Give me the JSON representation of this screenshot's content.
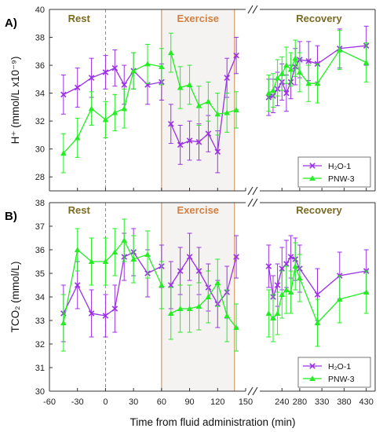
{
  "figure": {
    "xlabel": "Time from fluid administration (min)",
    "x_ticks_left": [
      -60,
      -30,
      0,
      30,
      60,
      90,
      120,
      150
    ],
    "x_ticks_right": [
      240,
      280,
      330,
      380,
      430
    ],
    "x_tick_labels_right": [
      "240",
      "280",
      "330",
      "380",
      "430"
    ],
    "x_tick_label_150": "150",
    "colors": {
      "h2o": "#9b30e6",
      "pnw": "#22ee22",
      "phase_text": "#7a6a20",
      "exercise_text": "#d08040",
      "exercise_fill": "#f5f2f2",
      "exercise_border": "#d8a070"
    }
  },
  "chart_data": [
    {
      "type": "line",
      "panel_label": "A)",
      "ylabel": "H⁺ (mmol/L x10⁻⁹)",
      "ylim": [
        27,
        40
      ],
      "y_ticks": [
        28,
        30,
        32,
        34,
        36,
        38,
        40
      ],
      "phases": {
        "rest": "Rest",
        "exercise": "Exercise",
        "recovery": "Recovery"
      },
      "exercise_range": [
        60,
        138
      ],
      "legend_position": "bottom-right",
      "series": [
        {
          "name": "H₂O-1",
          "marker": "x",
          "segments": [
            {
              "x": [
                -45,
                -30,
                -15,
                0,
                10,
                20,
                30,
                45,
                60
              ],
              "y": [
                33.9,
                34.4,
                35.1,
                35.5,
                35.8,
                34.6,
                35.6,
                34.6,
                34.8
              ],
              "err": [
                1.4,
                1.4,
                1.4,
                1.2,
                1.3,
                1.4,
                1.3,
                1.4,
                1.3
              ]
            },
            {
              "x": [
                70,
                80,
                90,
                100,
                110,
                120,
                130,
                140
              ],
              "y": [
                31.8,
                30.3,
                30.6,
                30.5,
                31.1,
                29.8,
                35.1,
                36.7
              ],
              "err": [
                1.4,
                1.4,
                1.4,
                1.3,
                1.3,
                1.5,
                1.4,
                1.3
              ]
            },
            {
              "x": [
                210,
                220,
                230,
                240,
                250,
                260,
                270,
                280,
                300,
                320,
                370,
                430
              ],
              "y": [
                33.7,
                33.8,
                34.3,
                34.8,
                34.0,
                34.8,
                35.9,
                36.4,
                36.3,
                36.1,
                37.2,
                37.4
              ],
              "err": [
                1.3,
                1.2,
                1.2,
                1.3,
                1.3,
                1.2,
                1.3,
                1.3,
                1.4,
                1.3,
                1.4,
                1.4
              ]
            }
          ]
        },
        {
          "name": "PNW-3",
          "marker": "triangle",
          "segments": [
            {
              "x": [
                -45,
                -30,
                -15,
                0,
                10,
                20,
                30,
                45,
                60
              ],
              "y": [
                29.7,
                30.8,
                32.9,
                32.1,
                32.6,
                32.9,
                35.6,
                36.1,
                35.9
              ],
              "err": [
                1.4,
                1.4,
                1.2,
                1.3,
                1.3,
                1.4,
                1.3,
                1.4,
                1.3
              ]
            },
            {
              "x": [
                70,
                80,
                90,
                100,
                110,
                120,
                130,
                140
              ],
              "y": [
                36.9,
                34.4,
                34.6,
                33.1,
                33.4,
                32.5,
                32.6,
                32.8
              ],
              "err": [
                1.4,
                1.5,
                1.4,
                1.4,
                1.4,
                1.5,
                1.4,
                1.3
              ]
            },
            {
              "x": [
                210,
                220,
                230,
                240,
                250,
                260,
                270,
                280,
                300,
                320,
                370,
                430
              ],
              "y": [
                34.0,
                34.2,
                35.1,
                35.4,
                36.0,
                35.7,
                36.5,
                35.5,
                34.7,
                34.7,
                37.1,
                36.2
              ],
              "err": [
                1.3,
                1.2,
                1.3,
                1.2,
                1.3,
                1.2,
                1.3,
                1.4,
                1.3,
                1.4,
                1.4,
                1.4
              ]
            }
          ]
        }
      ]
    },
    {
      "type": "line",
      "panel_label": "B)",
      "ylabel": "TCO₂ (mmol/L)",
      "ylim": [
        30,
        38
      ],
      "y_ticks": [
        30,
        31,
        32,
        33,
        34,
        35,
        36,
        37,
        38
      ],
      "phases": {
        "rest": "Rest",
        "exercise": "Exercise",
        "recovery": "Recovery"
      },
      "exercise_range": [
        60,
        138
      ],
      "legend_position": "bottom-right",
      "series": [
        {
          "name": "H₂O-1",
          "marker": "x",
          "segments": [
            {
              "x": [
                -45,
                -30,
                -15,
                0,
                10,
                20,
                30,
                45,
                60
              ],
              "y": [
                33.3,
                34.5,
                33.3,
                33.2,
                33.5,
                35.7,
                35.9,
                35.0,
                35.3
              ],
              "err": [
                1.2,
                1.0,
                1.0,
                0.9,
                1.0,
                1.0,
                1.0,
                1.0,
                0.9
              ]
            },
            {
              "x": [
                70,
                80,
                90,
                100,
                110,
                120,
                130,
                140
              ],
              "y": [
                34.5,
                35.1,
                35.7,
                35.1,
                34.4,
                33.7,
                34.2,
                35.7
              ],
              "err": [
                1.0,
                1.0,
                1.0,
                1.0,
                1.0,
                1.0,
                1.1,
                0.9
              ]
            },
            {
              "x": [
                210,
                220,
                230,
                240,
                250,
                260,
                270,
                280,
                320,
                370,
                430
              ],
              "y": [
                35.3,
                34.0,
                34.5,
                35.2,
                35.4,
                35.7,
                35.6,
                35.2,
                34.1,
                34.9,
                35.1
              ],
              "err": [
                0.9,
                0.9,
                0.9,
                0.9,
                1.0,
                0.9,
                0.9,
                1.0,
                1.1,
                1.0,
                0.9
              ]
            }
          ]
        },
        {
          "name": "PNW-3",
          "marker": "triangle",
          "segments": [
            {
              "x": [
                -45,
                -30,
                -15,
                0,
                10,
                20,
                30,
                45,
                60
              ],
              "y": [
                32.9,
                36.0,
                35.5,
                35.5,
                35.9,
                36.4,
                35.6,
                35.8,
                34.5
              ],
              "err": [
                1.2,
                0.9,
                1.0,
                1.0,
                1.0,
                0.9,
                1.0,
                1.0,
                1.0
              ]
            },
            {
              "x": [
                70,
                80,
                90,
                100,
                110,
                120,
                130,
                140
              ],
              "y": [
                33.3,
                33.5,
                33.5,
                33.6,
                34.0,
                34.6,
                33.2,
                32.7
              ],
              "err": [
                1.1,
                1.0,
                1.0,
                1.0,
                1.1,
                1.0,
                1.1,
                1.0
              ]
            },
            {
              "x": [
                210,
                220,
                230,
                240,
                250,
                260,
                270,
                280,
                320,
                370,
                430
              ],
              "y": [
                33.3,
                33.1,
                33.3,
                34.1,
                34.3,
                34.2,
                35.3,
                34.8,
                32.9,
                33.9,
                34.2
              ],
              "err": [
                1.0,
                1.0,
                0.9,
                1.0,
                1.0,
                0.9,
                1.0,
                1.0,
                1.0,
                1.0,
                0.9
              ]
            }
          ]
        }
      ]
    }
  ]
}
